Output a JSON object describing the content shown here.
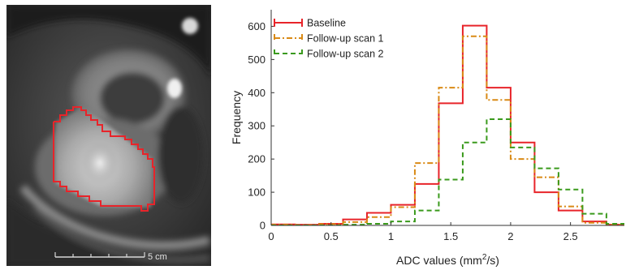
{
  "image_panel": {
    "scale_bar_label": "5 cm",
    "roi_color": "#e8242a"
  },
  "chart_data": {
    "type": "histogram",
    "xlabel": "ADC values (mm²/s)",
    "ylabel": "Frequency",
    "xlim": [
      0,
      2.95
    ],
    "ylim": [
      0,
      650
    ],
    "xticks": [
      0,
      0.5,
      1,
      1.5,
      2,
      2.5
    ],
    "xtick_labels": [
      "0",
      "0.5",
      "1",
      "1.5",
      "2",
      "2.5"
    ],
    "yticks": [
      0,
      100,
      200,
      300,
      400,
      500,
      600
    ],
    "ytick_labels": [
      "0",
      "100",
      "200",
      "300",
      "400",
      "500",
      "600"
    ],
    "bin_edges": [
      0,
      0.2,
      0.4,
      0.6,
      0.8,
      1.0,
      1.2,
      1.4,
      1.6,
      1.8,
      2.0,
      2.2,
      2.4,
      2.6,
      2.8,
      3.0
    ],
    "legend_position": "top-left",
    "series": [
      {
        "name": "Baseline",
        "color": "#e8242a",
        "dash": "solid",
        "values": [
          3,
          2,
          5,
          18,
          38,
          62,
          125,
          368,
          602,
          415,
          250,
          100,
          45,
          12,
          2
        ]
      },
      {
        "name": "Follow-up scan 1",
        "color": "#d98a16",
        "dash": "dashdot",
        "values": [
          2,
          1,
          4,
          10,
          25,
          55,
          188,
          415,
          570,
          378,
          200,
          145,
          57,
          8,
          2
        ]
      },
      {
        "name": "Follow-up scan 2",
        "color": "#3a9a1c",
        "dash": "dashed",
        "values": [
          0,
          0,
          0,
          2,
          5,
          12,
          45,
          138,
          250,
          320,
          235,
          172,
          108,
          35,
          5
        ]
      }
    ]
  }
}
